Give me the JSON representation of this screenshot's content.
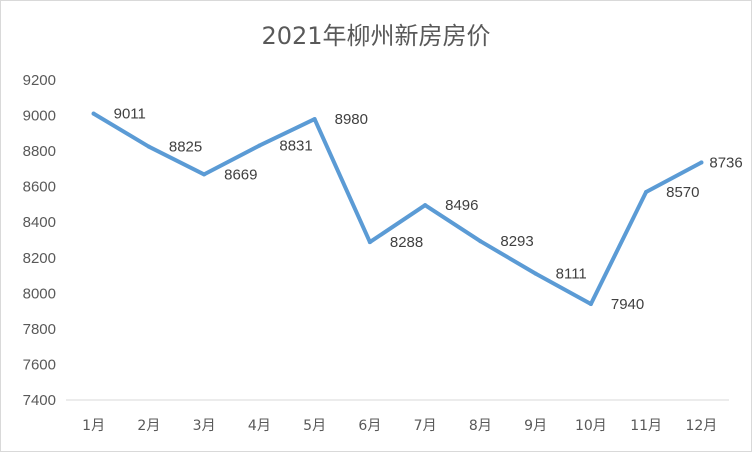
{
  "chart_data": {
    "type": "line",
    "title": "2021年柳州新房房价",
    "xlabel": "",
    "ylabel": "",
    "categories": [
      "1月",
      "2月",
      "3月",
      "4月",
      "5月",
      "6月",
      "7月",
      "8月",
      "9月",
      "10月",
      "11月",
      "12月"
    ],
    "series": [
      {
        "values": [
          9011,
          8825,
          8669,
          8831,
          8980,
          8288,
          8496,
          8293,
          8111,
          7940,
          8570,
          8736
        ]
      }
    ],
    "ylim": [
      7400,
      9200
    ],
    "yticks": [
      "7400",
      "7600",
      "7800",
      "8000",
      "8200",
      "8400",
      "8600",
      "8800",
      "9000",
      "9200"
    ],
    "data_labels": [
      "9011",
      "8825",
      "8669",
      "8831",
      "8980",
      "8288",
      "8496",
      "8293",
      "8111",
      "7940",
      "8570",
      "8736"
    ],
    "grid": false,
    "legend": "none",
    "line_color": "#5b9bd5"
  }
}
